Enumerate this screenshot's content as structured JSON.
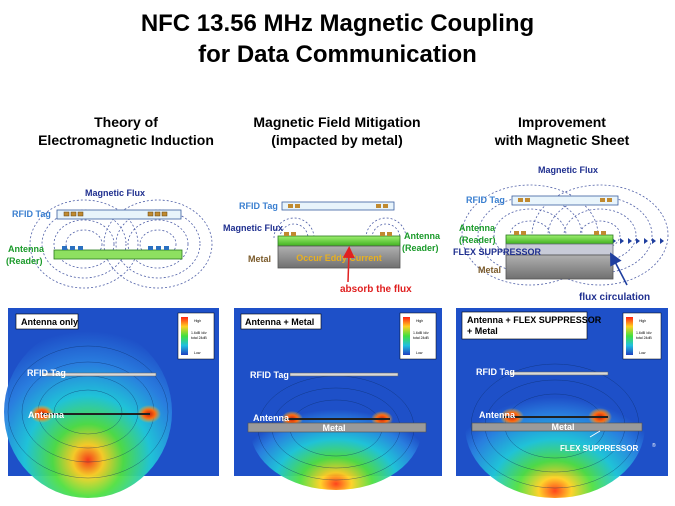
{
  "slide": {
    "title_line1": "NFC 13.56 MHz Magnetic Coupling",
    "title_line2": "for Data Communication"
  },
  "columns": [
    {
      "heading_line1": "Theory of",
      "heading_line2": "Electromagnetic Induction",
      "diagram": {
        "magnetic_flux": "Magnetic Flux",
        "rfid_tag": "RFID Tag",
        "antenna_line1": "Antenna",
        "antenna_line2": "(Reader)"
      },
      "simulation": {
        "box_label": "Antenna only",
        "rfid_tag": "RFID Tag",
        "antenna": "Antenna"
      }
    },
    {
      "heading_line1": "Magnetic Field Mitigation",
      "heading_line2": "(impacted by metal)",
      "diagram": {
        "rfid_tag": "RFID Tag",
        "magnetic_flux": "Magnetic Flux",
        "metal": "Metal",
        "antenna_line1": "Antenna",
        "antenna_line2": "(Reader)",
        "eddy_current": "Occur Eddy Current",
        "absorb": "absorb the flux"
      },
      "simulation": {
        "box_label": "Antenna + Metal",
        "rfid_tag": "RFID Tag",
        "antenna": "Antenna",
        "metal": "Metal"
      }
    },
    {
      "heading_line1": "Improvement",
      "heading_line2": "with Magnetic Sheet",
      "diagram": {
        "magnetic_flux": "Magnetic Flux",
        "rfid_tag": "RFID Tag",
        "antenna_line1": "Antenna",
        "antenna_line2": "(Reader)",
        "flex_suppressor": "FLEX SUPPRESSOR",
        "metal": "Metal",
        "flux_circulation": "flux circulation"
      },
      "simulation": {
        "box_label_line1": "Antenna + FLEX SUPPRESSOR",
        "box_label_line2": "+ Metal",
        "rfid_tag": "RFID Tag",
        "antenna": "Antenna",
        "metal": "Metal",
        "flex_suppressor_label": "FLEX SUPPRESSOR",
        "registered_mark": "®"
      }
    }
  ],
  "colorbar": {
    "high": "High",
    "low": "Low",
    "unit_line1": "1.6dB /div",
    "unit_line2": "total 24dB"
  },
  "colors": {
    "flux_label": "#1f2f8f",
    "tag_label": "#3a7fd0",
    "antenna_label": "#1a9a2a",
    "metal_label": "#7a5a2a",
    "absorb_label": "#e02020",
    "flux_arc": "#5060a8",
    "sim_background": "#1e50c8"
  }
}
